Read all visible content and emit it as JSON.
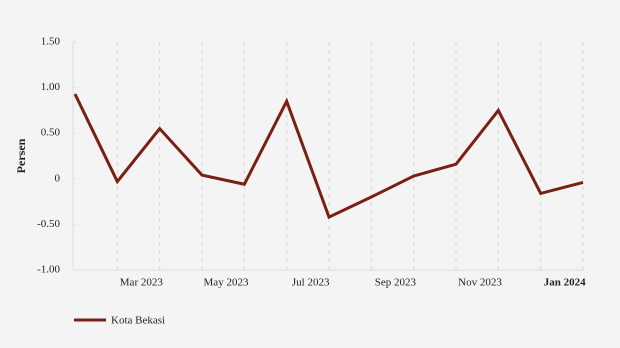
{
  "chart_data": {
    "type": "line",
    "y_label": "Persen",
    "categories": [
      null,
      "Mar 2023",
      null,
      "May 2023",
      null,
      "Jul 2023",
      null,
      "Sep 2023",
      null,
      "Nov 2023",
      null,
      "Jan 2024",
      null
    ],
    "series": [
      {
        "name": "Kota Bekasi",
        "color": "#7a1f14",
        "values": [
          0.93,
          -0.03,
          0.55,
          0.04,
          -0.06,
          0.85,
          -0.42,
          -0.2,
          0.03,
          0.16,
          0.75,
          -0.16,
          -0.04
        ]
      }
    ],
    "ylim": [
      -1,
      1.5
    ],
    "yticks": [
      {
        "value": -1,
        "label": "-1.00"
      },
      {
        "value": -0.5,
        "label": "-0.50"
      },
      0,
      {
        "value": 0.5,
        "label": "0.50"
      },
      {
        "value": 1,
        "label": "1.00"
      },
      {
        "value": 1.5,
        "label": "1.50"
      }
    ],
    "grid": true,
    "legend": "bottom-left"
  }
}
